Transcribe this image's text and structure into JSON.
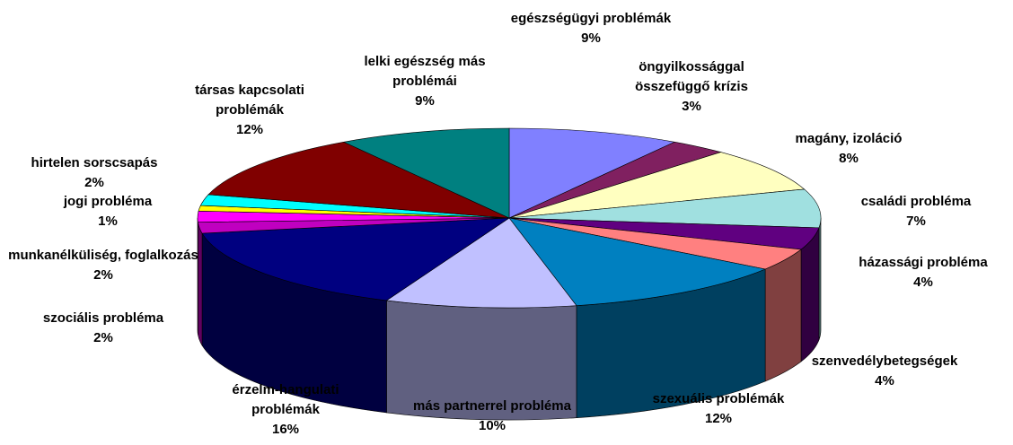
{
  "chart_data": {
    "type": "pie3d",
    "categories": [
      "egészségügyi problémák",
      "öngyilkossággal összefüggő krízis",
      "magány, izoláció",
      "családi probléma",
      "házassági probléma",
      "szenvedélybetegségek",
      "szexuális problémák",
      "más partnerrel probléma",
      "érzelm-hangulati problémák",
      "szociális probléma",
      "munkanélküliség, foglalkozás",
      "jogi probléma",
      "hirtelen sorscsapás",
      "társas kapcsolati problémák",
      "lelki egészség más problémái"
    ],
    "values": [
      9,
      3,
      8,
      7,
      4,
      4,
      12,
      10,
      16,
      2,
      2,
      1,
      2,
      12,
      9
    ],
    "value_labels": [
      "9%",
      "3%",
      "8%",
      "7%",
      "4%",
      "4%",
      "12%",
      "10%",
      "16%",
      "2%",
      "2%",
      "1%",
      "2%",
      "12%",
      "9%"
    ],
    "colors": [
      "#8080ff",
      "#802060",
      "#ffffc0",
      "#a0e0e0",
      "#600080",
      "#ff8080",
      "#0080c0",
      "#c0c0ff",
      "#000080",
      "#c000c0",
      "#ff00ff",
      "#ffff00",
      "#00ffff",
      "#800000",
      "#008080"
    ]
  }
}
